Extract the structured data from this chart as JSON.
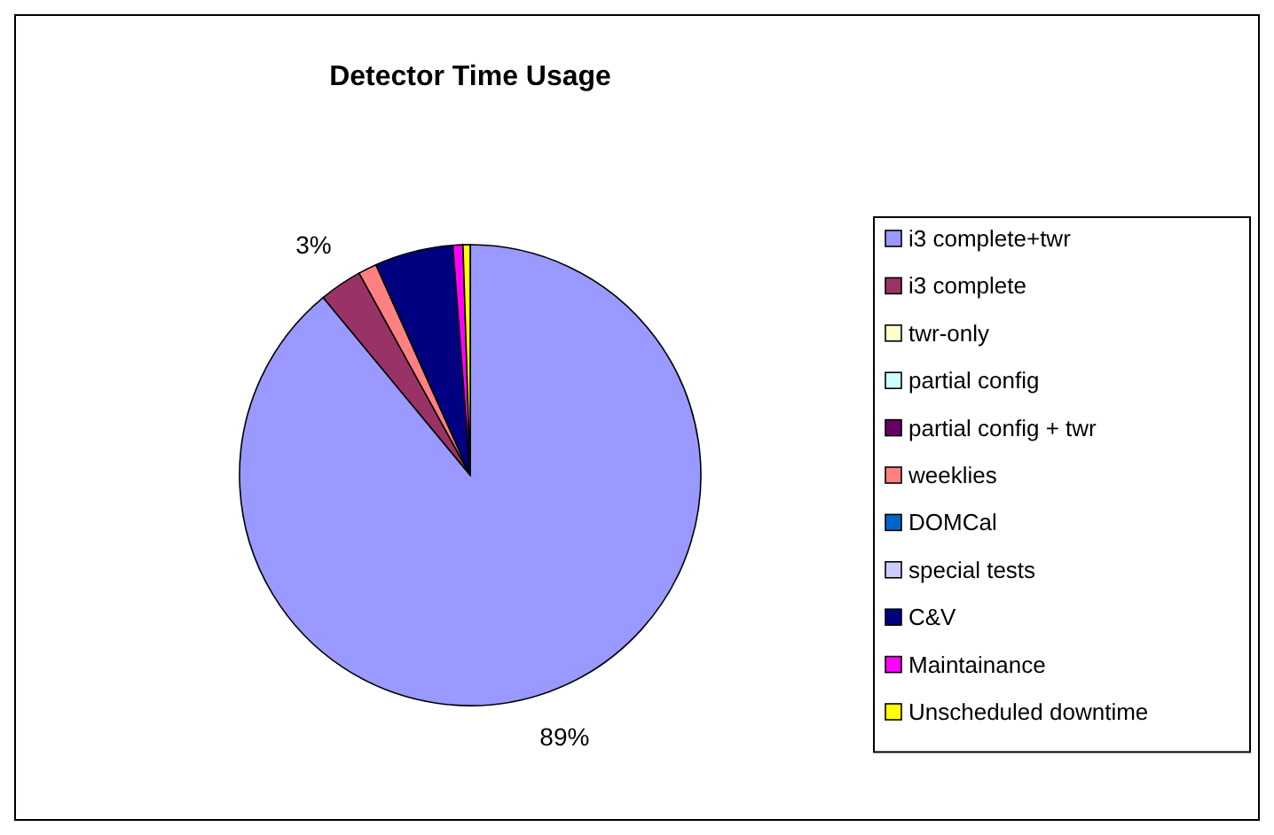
{
  "chart_data": {
    "type": "pie",
    "title": "Detector Time Usage",
    "categories": [
      "i3 complete+twr",
      "i3 complete",
      "twr-only",
      "partial config",
      "partial config + twr",
      "weeklies",
      "DOMCal",
      "special tests",
      "C&V",
      "Maintainance",
      "Unscheduled downtime"
    ],
    "values": [
      89,
      3,
      0,
      0,
      0,
      1.3,
      0,
      0,
      5.5,
      0.7,
      0.5
    ],
    "colors": [
      "#9999ff",
      "#993366",
      "#ffffcc",
      "#ccffff",
      "#660066",
      "#ff8080",
      "#0066cc",
      "#ccccff",
      "#000080",
      "#ff00ff",
      "#ffff00"
    ],
    "value_labels": [
      "89%",
      "3%",
      null,
      null,
      null,
      null,
      null,
      null,
      null,
      null,
      null
    ],
    "legend": "right"
  }
}
